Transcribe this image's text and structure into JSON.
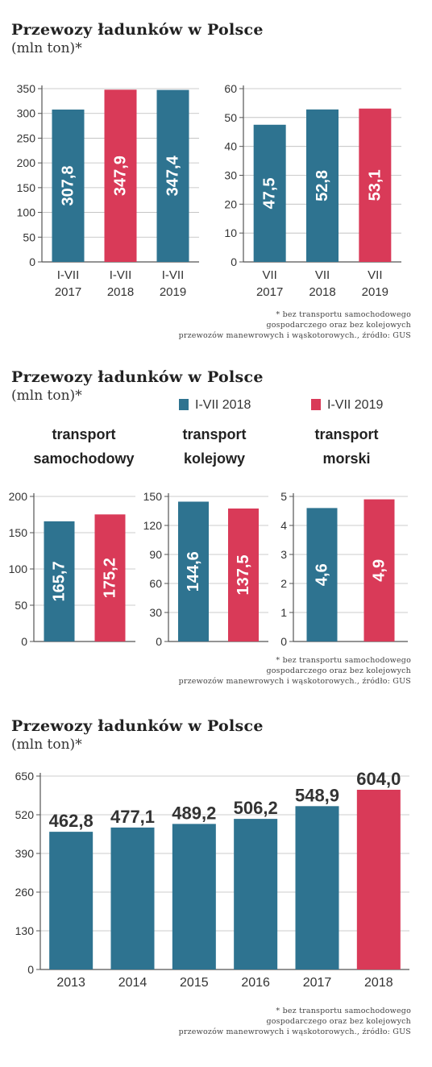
{
  "colors": {
    "teal": "#2e7390",
    "red": "#d93a58",
    "grid": "#bbbbbb",
    "axis": "#555555"
  },
  "sections": [
    {
      "title": "Przewozy ładunków w Polsce",
      "unit": "(mln ton)*",
      "footnote": [
        "* bez transportu samochodowego",
        "gospodarczego oraz bez kolejowych",
        "przewozów manewrowych i wąskotorowych., źródło: GUS"
      ]
    },
    {
      "title": "Przewozy ładunków w Polsce",
      "unit": "(mln ton)*",
      "legend": [
        {
          "label": "I-VII 2018",
          "color": "#2e7390"
        },
        {
          "label": "I-VII 2019",
          "color": "#d93a58"
        }
      ],
      "panel_titles": [
        [
          "transport",
          "samochodowy"
        ],
        [
          "transport",
          "kolejowy"
        ],
        [
          "transport",
          "morski"
        ]
      ],
      "footnote": [
        "* bez transportu samochodowego",
        "gospodarczego oraz bez kolejowych",
        "przewozów manewrowych i wąskotorowych., źródło: GUS"
      ]
    },
    {
      "title": "Przewozy ładunków w Polsce",
      "unit": "(mln ton)*",
      "footnote": [
        "* bez transportu samochodowego",
        "gospodarczego oraz bez kolejowych",
        "przewozów manewrowych i wąskotorowych., źródło: GUS"
      ]
    }
  ],
  "chart_data": [
    {
      "type": "bar",
      "categories": [
        [
          "I-VII",
          "2017"
        ],
        [
          "I-VII",
          "2018"
        ],
        [
          "I-VII",
          "2019"
        ]
      ],
      "values": [
        307.8,
        347.9,
        347.4
      ],
      "labels": [
        "307,8",
        "347,9",
        "347,4"
      ],
      "colors": [
        "#2e7390",
        "#d93a58",
        "#2e7390"
      ],
      "ylim": [
        0,
        350
      ],
      "yticks": [
        "0",
        "50",
        "100",
        "150",
        "200",
        "250",
        "300",
        "350"
      ],
      "grid": true,
      "label_style": "vertical"
    },
    {
      "type": "bar",
      "categories": [
        [
          "VII",
          "2017"
        ],
        [
          "VII",
          "2018"
        ],
        [
          "VII",
          "2019"
        ]
      ],
      "values": [
        47.5,
        52.8,
        53.1
      ],
      "labels": [
        "47,5",
        "52,8",
        "53,1"
      ],
      "colors": [
        "#2e7390",
        "#2e7390",
        "#d93a58"
      ],
      "ylim": [
        0,
        60
      ],
      "yticks": [
        "0",
        "10",
        "20",
        "30",
        "40",
        "50",
        "60"
      ],
      "grid": true,
      "label_style": "vertical"
    },
    {
      "type": "bar",
      "categories": [],
      "values": [
        165.7,
        175.2
      ],
      "labels": [
        "165,7",
        "175,2"
      ],
      "colors": [
        "#2e7390",
        "#d93a58"
      ],
      "ylim": [
        0,
        200
      ],
      "yticks": [
        "0",
        "50",
        "100",
        "150",
        "200"
      ],
      "grid": true,
      "label_style": "vertical"
    },
    {
      "type": "bar",
      "categories": [],
      "values": [
        144.6,
        137.5
      ],
      "labels": [
        "144,6",
        "137,5"
      ],
      "colors": [
        "#2e7390",
        "#d93a58"
      ],
      "ylim": [
        0,
        150
      ],
      "yticks": [
        "0",
        "30",
        "60",
        "90",
        "120",
        "150"
      ],
      "grid": true,
      "label_style": "vertical"
    },
    {
      "type": "bar",
      "categories": [],
      "values": [
        4.6,
        4.9
      ],
      "labels": [
        "4,6",
        "4,9"
      ],
      "colors": [
        "#2e7390",
        "#d93a58"
      ],
      "ylim": [
        0,
        5
      ],
      "yticks": [
        "0",
        "1",
        "2",
        "3",
        "4",
        "5"
      ],
      "grid": true,
      "label_style": "vertical"
    },
    {
      "type": "bar",
      "categories": [
        [
          "2013"
        ],
        [
          "2014"
        ],
        [
          "2015"
        ],
        [
          "2016"
        ],
        [
          "2017"
        ],
        [
          "2018"
        ]
      ],
      "values": [
        462.8,
        477.1,
        489.2,
        506.2,
        548.9,
        604.0
      ],
      "labels": [
        "462,8",
        "477,1",
        "489,2",
        "506,2",
        "548,9",
        "604,0"
      ],
      "colors": [
        "#2e7390",
        "#2e7390",
        "#2e7390",
        "#2e7390",
        "#2e7390",
        "#d93a58"
      ],
      "ylim": [
        0,
        650
      ],
      "yticks": [
        "0",
        "130",
        "260",
        "390",
        "520",
        "650"
      ],
      "grid": true,
      "label_style": "above"
    }
  ]
}
